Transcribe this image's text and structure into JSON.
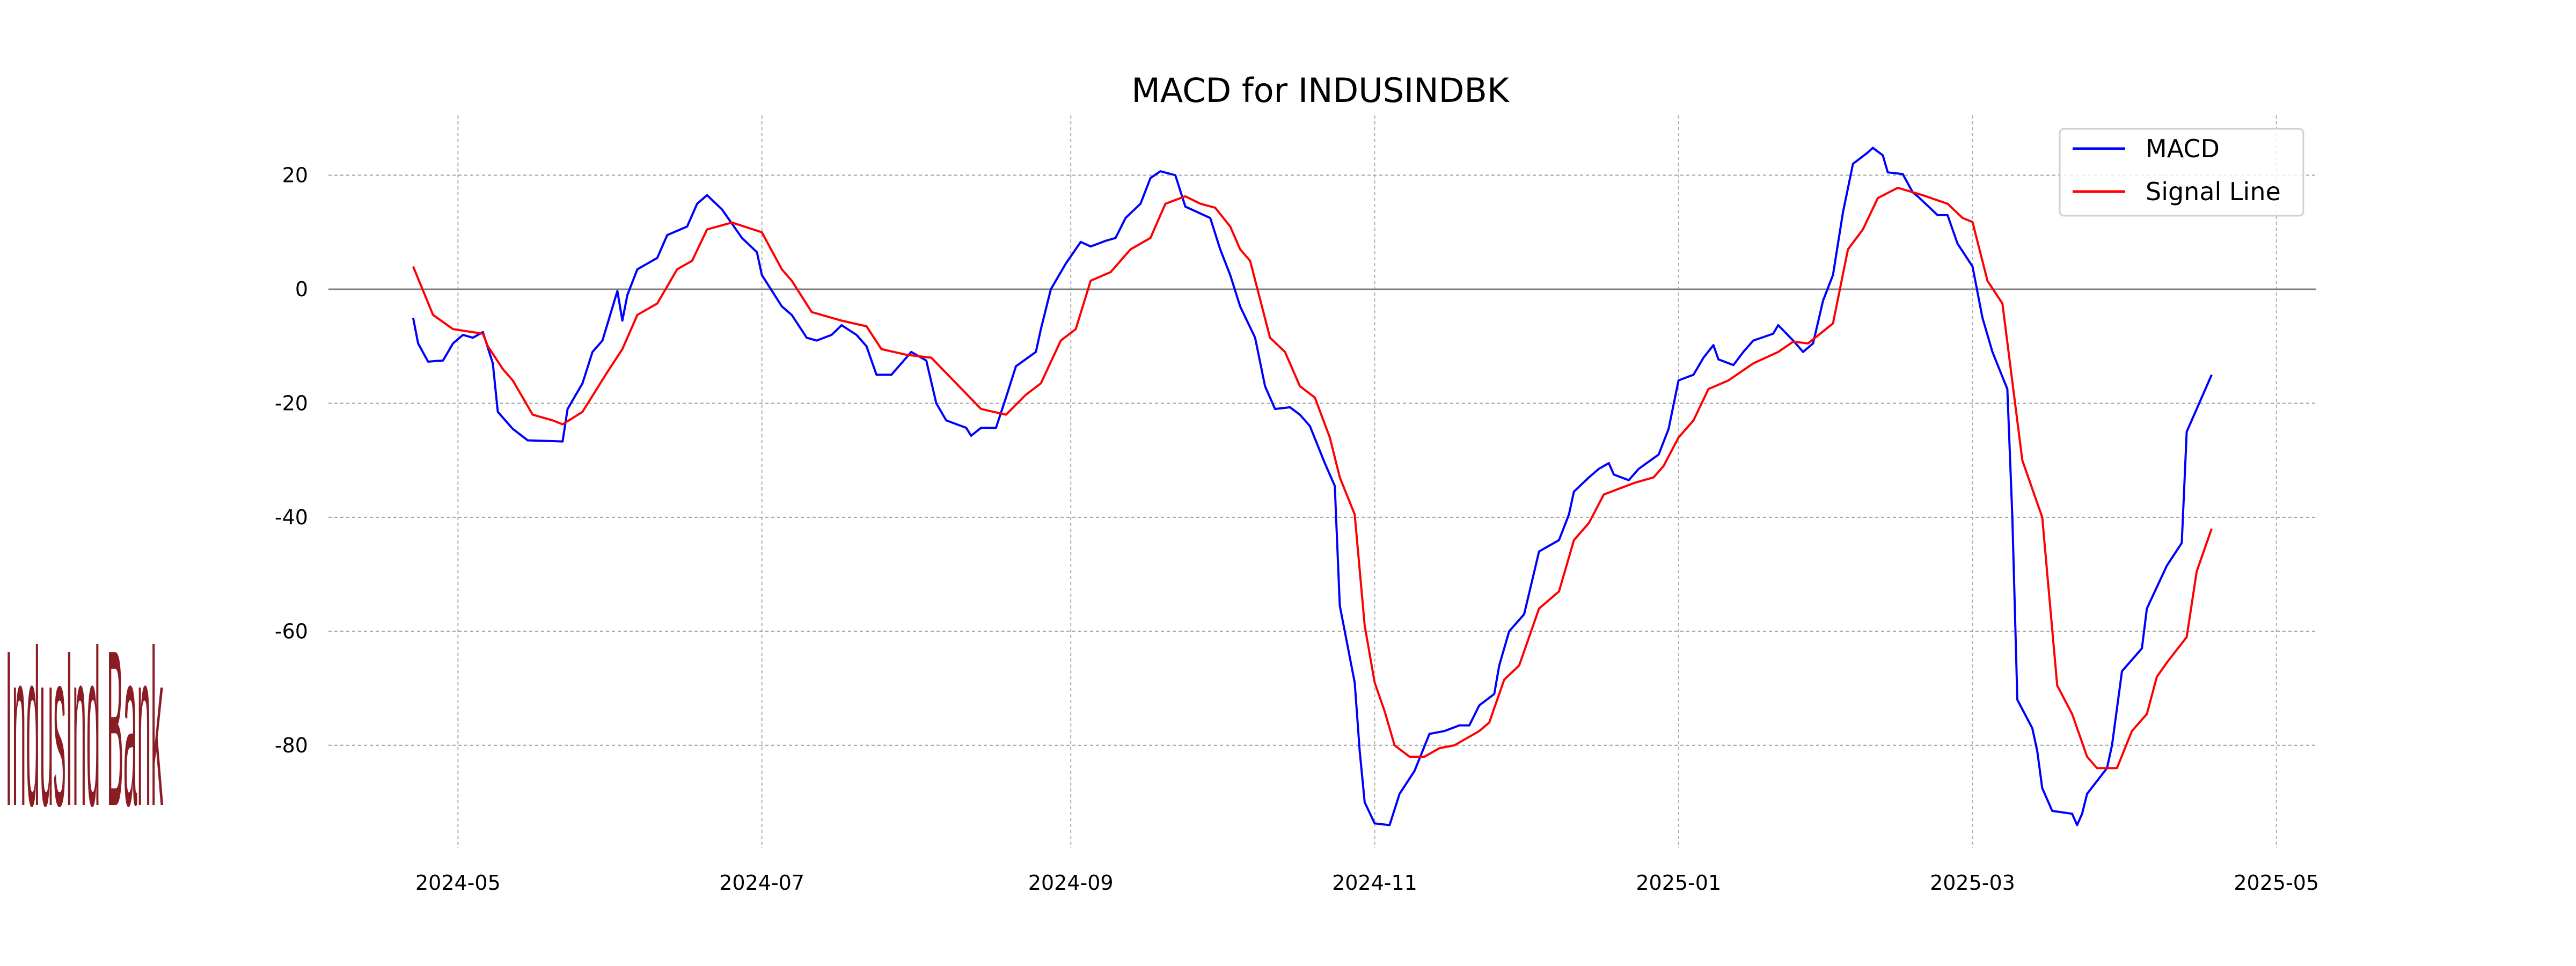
{
  "logo_text": "IndusInd Bank",
  "chart_data": {
    "type": "line",
    "title": "MACD for INDUSINDBK",
    "xlabel": "",
    "ylabel": "",
    "xlim": [
      "2024-04-05",
      "2025-05-09"
    ],
    "ylim": [
      -98,
      30.5
    ],
    "grid": true,
    "legend_position": "top-right",
    "x_ticks": [
      "2024-05",
      "2024-07",
      "2024-09",
      "2024-11",
      "2025-01",
      "2025-03",
      "2025-05"
    ],
    "y_ticks": [
      20,
      0,
      -20,
      -40,
      -60,
      -80
    ],
    "reference_line": 0,
    "series": [
      {
        "name": "MACD",
        "color": "#0000ff",
        "x": [
          "2024-04-22",
          "2024-04-23",
          "2024-04-25",
          "2024-04-28",
          "2024-04-30",
          "2024-05-02",
          "2024-05-04",
          "2024-05-06",
          "2024-05-08",
          "2024-05-09",
          "2024-05-12",
          "2024-05-15",
          "2024-05-22",
          "2024-05-23",
          "2024-05-26",
          "2024-05-28",
          "2024-05-30",
          "2024-06-02",
          "2024-06-03",
          "2024-06-04",
          "2024-06-06",
          "2024-06-10",
          "2024-06-12",
          "2024-06-16",
          "2024-06-18",
          "2024-06-20",
          "2024-06-23",
          "2024-06-27",
          "2024-06-30",
          "2024-07-01",
          "2024-07-05",
          "2024-07-07",
          "2024-07-10",
          "2024-07-12",
          "2024-07-15",
          "2024-07-17",
          "2024-07-20",
          "2024-07-22",
          "2024-07-24",
          "2024-07-27",
          "2024-07-31",
          "2024-08-03",
          "2024-08-05",
          "2024-08-07",
          "2024-08-11",
          "2024-08-12",
          "2024-08-14",
          "2024-08-17",
          "2024-08-19",
          "2024-08-21",
          "2024-08-25",
          "2024-08-26",
          "2024-08-28",
          "2024-08-31",
          "2024-09-03",
          "2024-09-05",
          "2024-09-08",
          "2024-09-10",
          "2024-09-12",
          "2024-09-15",
          "2024-09-17",
          "2024-09-19",
          "2024-09-22",
          "2024-09-24",
          "2024-09-29",
          "2024-10-01",
          "2024-10-03",
          "2024-10-05",
          "2024-10-08",
          "2024-10-10",
          "2024-10-12",
          "2024-10-15",
          "2024-10-17",
          "2024-10-19",
          "2024-10-22",
          "2024-10-24",
          "2024-10-25",
          "2024-10-28",
          "2024-10-29",
          "2024-10-30",
          "2024-11-01",
          "2024-11-04",
          "2024-11-06",
          "2024-11-09",
          "2024-11-12",
          "2024-11-15",
          "2024-11-18",
          "2024-11-20",
          "2024-11-22",
          "2024-11-25",
          "2024-11-26",
          "2024-11-28",
          "2024-12-01",
          "2024-12-04",
          "2024-12-08",
          "2024-12-10",
          "2024-12-11",
          "2024-12-14",
          "2024-12-16",
          "2024-12-18",
          "2024-12-19",
          "2024-12-22",
          "2024-12-24",
          "2024-12-28",
          "2024-12-30",
          "2025-01-01",
          "2025-01-04",
          "2025-01-06",
          "2025-01-08",
          "2025-01-09",
          "2025-01-12",
          "2025-01-14",
          "2025-01-16",
          "2025-01-20",
          "2025-01-21",
          "2025-01-24",
          "2025-01-26",
          "2025-01-28",
          "2025-01-30",
          "2025-02-01",
          "2025-02-03",
          "2025-02-05",
          "2025-02-08",
          "2025-02-09",
          "2025-02-11",
          "2025-02-12",
          "2025-02-15",
          "2025-02-17",
          "2025-02-18",
          "2025-02-22",
          "2025-02-24",
          "2025-02-26",
          "2025-03-01",
          "2025-03-03",
          "2025-03-05",
          "2025-03-08",
          "2025-03-09",
          "2025-03-10",
          "2025-03-13",
          "2025-03-14",
          "2025-03-15",
          "2025-03-17",
          "2025-03-21",
          "2025-03-22",
          "2025-03-23",
          "2025-03-24",
          "2025-03-28",
          "2025-03-29",
          "2025-03-31",
          "2025-04-04",
          "2025-04-05",
          "2025-04-09",
          "2025-04-12",
          "2025-04-13",
          "2025-04-18"
        ],
        "y": [
          -5,
          -9.5,
          -12.7,
          -12.5,
          -9.5,
          -8,
          -8.5,
          -7.5,
          -13,
          -21.5,
          -24.5,
          -26.5,
          -26.7,
          -21,
          -16.5,
          -11,
          -9,
          -0.3,
          -5.5,
          -1,
          3.5,
          5.5,
          9.5,
          11,
          15,
          16.5,
          14,
          9,
          6.5,
          2.5,
          -3,
          -4.5,
          -8.5,
          -9,
          -8,
          -6.3,
          -8,
          -10,
          -15,
          -15,
          -11,
          -12.5,
          -20,
          -23,
          -24.3,
          -25.7,
          -24.3,
          -24.3,
          -19,
          -13.5,
          -11,
          -7,
          0,
          4.5,
          8.3,
          7.5,
          8.5,
          9,
          12.5,
          15,
          19.5,
          20.7,
          20,
          14.5,
          12.5,
          7,
          2.5,
          -3,
          -8.5,
          -17,
          -21,
          -20.7,
          -22,
          -24,
          -30.5,
          -34.5,
          -55.5,
          -69,
          -81,
          -90,
          -93.7,
          -94,
          -88.5,
          -84.5,
          -78,
          -77.5,
          -76.5,
          -76.5,
          -73,
          -71,
          -66,
          -60,
          -57,
          -46,
          -44,
          -39.5,
          -35.5,
          -33,
          -31.5,
          -30.5,
          -32.5,
          -33.5,
          -31.5,
          -29,
          -24.5,
          -16,
          -15,
          -12,
          -9.8,
          -12.3,
          -13.3,
          -11,
          -9,
          -7.8,
          -6.3,
          -9,
          -11,
          -9.5,
          -2,
          2.5,
          13.5,
          22,
          24,
          24.8,
          23.5,
          20.5,
          20.2,
          17,
          16.3,
          13,
          13,
          8,
          4,
          -5,
          -11,
          -17.5,
          -40,
          -72,
          -77,
          -81,
          -87.5,
          -91.5,
          -92,
          -94,
          -92,
          -88.5,
          -84,
          -80,
          -67,
          -63,
          -56,
          -48.5,
          -44.5,
          -25,
          -15
        ]
      },
      {
        "name": "Signal Line",
        "color": "#ff0000",
        "x": [
          "2024-04-22",
          "2024-04-26",
          "2024-04-30",
          "2024-05-06",
          "2024-05-07",
          "2024-05-10",
          "2024-05-12",
          "2024-05-16",
          "2024-05-20",
          "2024-05-22",
          "2024-05-26",
          "2024-05-31",
          "2024-06-03",
          "2024-06-06",
          "2024-06-10",
          "2024-06-14",
          "2024-06-17",
          "2024-06-20",
          "2024-06-25",
          "2024-07-01",
          "2024-07-05",
          "2024-07-07",
          "2024-07-11",
          "2024-07-17",
          "2024-07-22",
          "2024-07-25",
          "2024-07-30",
          "2024-08-04",
          "2024-08-09",
          "2024-08-14",
          "2024-08-19",
          "2024-08-23",
          "2024-08-26",
          "2024-08-30",
          "2024-09-02",
          "2024-09-05",
          "2024-09-09",
          "2024-09-13",
          "2024-09-17",
          "2024-09-20",
          "2024-09-24",
          "2024-09-27",
          "2024-09-30",
          "2024-10-03",
          "2024-10-05",
          "2024-10-07",
          "2024-10-11",
          "2024-10-14",
          "2024-10-17",
          "2024-10-20",
          "2024-10-23",
          "2024-10-25",
          "2024-10-28",
          "2024-10-30",
          "2024-11-01",
          "2024-11-03",
          "2024-11-05",
          "2024-11-08",
          "2024-11-11",
          "2024-11-14",
          "2024-11-17",
          "2024-11-22",
          "2024-11-24",
          "2024-11-27",
          "2024-11-30",
          "2024-12-04",
          "2024-12-08",
          "2024-12-11",
          "2024-12-14",
          "2024-12-17",
          "2024-12-23",
          "2024-12-27",
          "2024-12-29",
          "2025-01-01",
          "2025-01-04",
          "2025-01-07",
          "2025-01-11",
          "2025-01-16",
          "2025-01-21",
          "2025-01-24",
          "2025-01-27",
          "2025-02-01",
          "2025-02-04",
          "2025-02-07",
          "2025-02-10",
          "2025-02-14",
          "2025-02-19",
          "2025-02-24",
          "2025-02-27",
          "2025-03-01",
          "2025-03-04",
          "2025-03-07",
          "2025-03-11",
          "2025-03-15",
          "2025-03-18",
          "2025-03-21",
          "2025-03-24",
          "2025-03-26",
          "2025-03-30",
          "2025-04-02",
          "2025-04-05",
          "2025-04-07",
          "2025-04-09",
          "2025-04-13",
          "2025-04-15",
          "2025-04-18"
        ],
        "y": [
          4,
          -4.5,
          -7,
          -7.8,
          -10,
          -14,
          -16,
          -22,
          -23,
          -23.7,
          -21.5,
          -14.5,
          -10.5,
          -4.5,
          -2.5,
          3.5,
          5,
          10.5,
          11.7,
          10,
          3.5,
          1.5,
          -4,
          -5.5,
          -6.5,
          -10.5,
          -11.5,
          -12,
          -16.5,
          -21,
          -22,
          -18.5,
          -16.5,
          -9,
          -7,
          1.5,
          3,
          7,
          9,
          15,
          16.3,
          15,
          14.3,
          11,
          7,
          5,
          -8.5,
          -11,
          -17,
          -19,
          -26,
          -33,
          -39.5,
          -59,
          -69,
          -74,
          -80,
          -82,
          -82,
          -80.5,
          -80,
          -77.5,
          -76,
          -68.5,
          -66,
          -56,
          -53,
          -44,
          -41,
          -36,
          -34,
          -33,
          -31,
          -26,
          -23,
          -17.5,
          -16,
          -13,
          -11,
          -9.2,
          -9.5,
          -6,
          7,
          10.5,
          16,
          17.8,
          16.5,
          15,
          12.5,
          11.8,
          1.5,
          -2.5,
          -30,
          -40,
          -69.5,
          -74.5,
          -82,
          -84,
          -84,
          -77.5,
          -74.5,
          -68,
          -65.5,
          -61,
          -49.5,
          -42
        ]
      }
    ]
  }
}
